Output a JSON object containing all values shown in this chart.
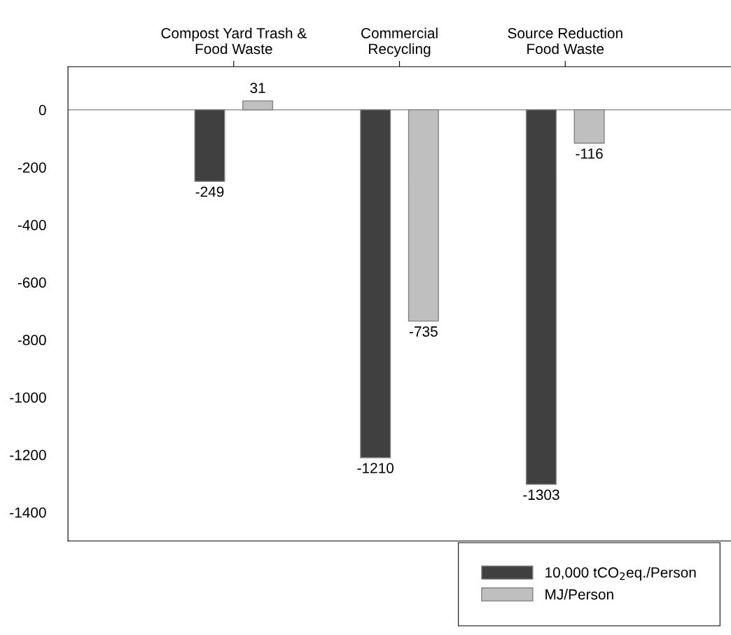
{
  "chart_data": {
    "type": "bar",
    "categories": [
      "Compost Yard Trash &\nFood Waste",
      "Commercial\nRecycling",
      "Source Reduction\nFood Waste"
    ],
    "series": [
      {
        "name": "10,000 tCO$_{2}$eq./Person",
        "color": "#404040",
        "values": [
          -249,
          -1210,
          -1303
        ]
      },
      {
        "name": "MJ/Person",
        "color": "#bfbfbf",
        "values": [
          31,
          -735,
          -116
        ]
      }
    ],
    "ylim": [
      -1500,
      150
    ],
    "yticks": [
      -1400,
      -1200,
      -1000,
      -800,
      -600,
      -400,
      -200,
      0
    ],
    "ref_lines": [
      {
        "axis": "y",
        "value": 0,
        "color": "#808080"
      }
    ],
    "data_labels": true,
    "grid": false,
    "legend": "bottom right"
  }
}
